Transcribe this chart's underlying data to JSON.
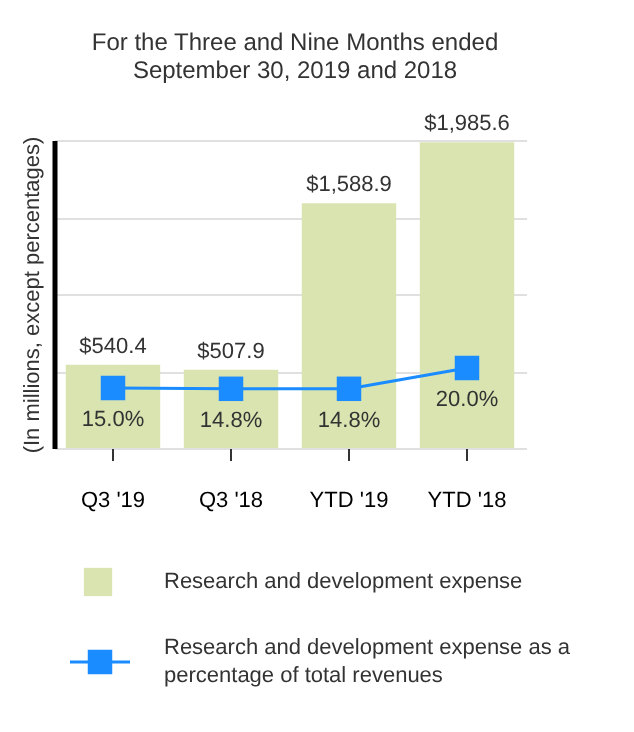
{
  "chart_data": {
    "type": "bar",
    "title": "For the Three and Nine Months ended\nSeptember 30, 2019 and 2018",
    "ylabel": "(In millions, except percentages)",
    "categories": [
      "Q3 '19",
      "Q3 '18",
      "YTD '19",
      "YTD '18"
    ],
    "series": [
      {
        "name": "Research and development expense",
        "color": "#d9e4b0",
        "values": [
          540.4,
          507.9,
          1588.9,
          1985.6
        ],
        "value_labels": [
          "$540.4",
          "$507.9",
          "$1,588.9",
          "$1,985.6"
        ]
      },
      {
        "name": "Research and development expense as a percentage of total revenues",
        "type": "line",
        "axis": "y2",
        "color": "#1a8cff",
        "values": [
          15.0,
          14.8,
          14.8,
          20.0
        ],
        "value_labels": [
          "15.0%",
          "14.8%",
          "14.8%",
          "20.0%"
        ],
        "marker": "square"
      }
    ],
    "ylim": [
      0,
      2000
    ],
    "yticks": [
      {
        "value": 0,
        "label": null
      },
      {
        "value": 500,
        "label": null
      },
      {
        "value": 1000,
        "label": null
      },
      {
        "value": 1500,
        "label": null
      },
      {
        "value": 2000,
        "label": null
      }
    ],
    "y2lim": [
      0,
      77
    ],
    "grid": "y",
    "legend": "bottom",
    "tick_labels": "x"
  }
}
